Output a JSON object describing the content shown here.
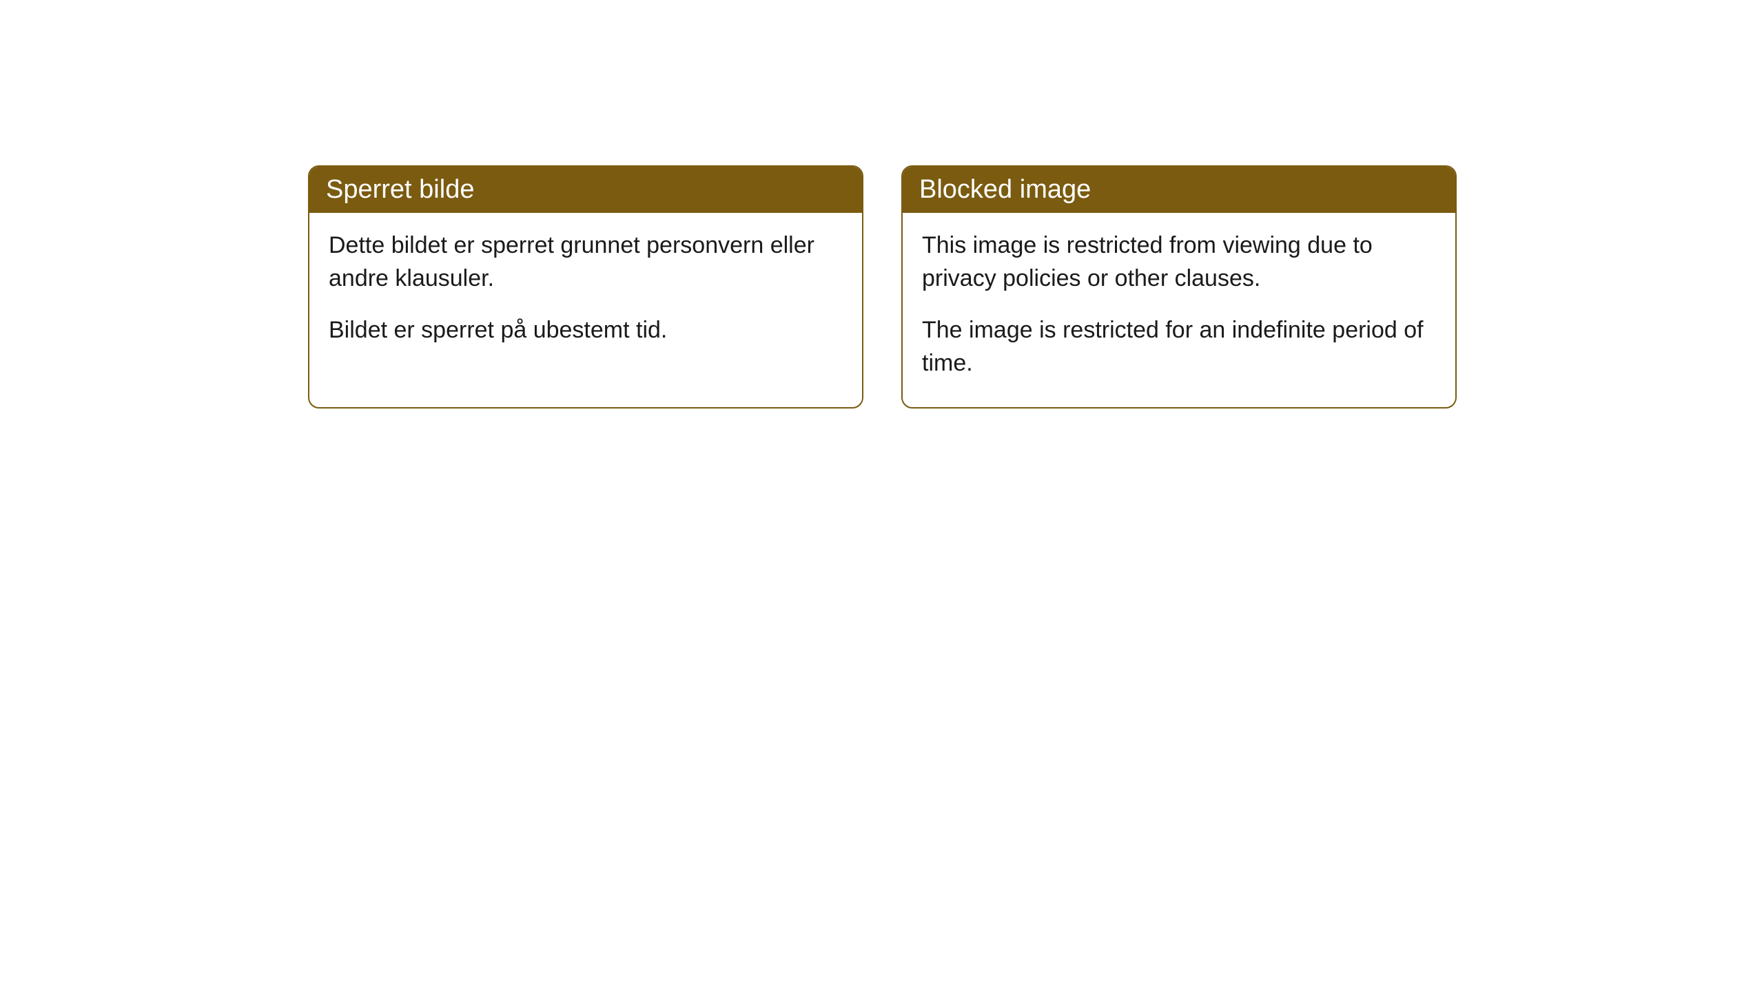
{
  "cards": [
    {
      "title": "Sperret bilde",
      "paragraph1": "Dette bildet er sperret grunnet personvern eller andre klausuler.",
      "paragraph2": "Bildet er sperret på ubestemt tid."
    },
    {
      "title": "Blocked image",
      "paragraph1": "This image is restricted from viewing due to privacy policies or other clauses.",
      "paragraph2": "The image is restricted for an indefinite period of time."
    }
  ],
  "colors": {
    "header_background": "#7a5b10",
    "header_text": "#ffffff",
    "card_border": "#7a5b10",
    "body_text": "#1a1a1a",
    "page_background": "#ffffff"
  }
}
